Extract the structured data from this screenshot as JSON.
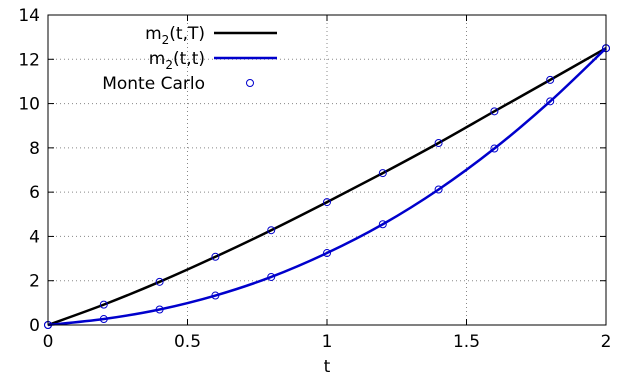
{
  "chart_data": {
    "type": "line",
    "title": "",
    "xlabel": "t",
    "ylabel": "",
    "xlim": [
      0,
      2
    ],
    "ylim": [
      0,
      14
    ],
    "xticks": [
      0,
      0.5,
      1,
      1.5,
      2
    ],
    "xtick_labels": [
      "0",
      "0.5",
      "1",
      "1.5",
      "2"
    ],
    "yticks": [
      0,
      2,
      4,
      6,
      8,
      10,
      12,
      14
    ],
    "ytick_labels": [
      "0",
      "2",
      "4",
      "6",
      "8",
      "10",
      "12",
      "14"
    ],
    "grid": "dotted",
    "legend_position": "top-left",
    "series": [
      {
        "name_main": "m",
        "name_sub": "2",
        "name_rest": "(t,T)",
        "kind": "line",
        "color": "#000000",
        "x": [
          0,
          0.2,
          0.4,
          0.6,
          0.8,
          1.0,
          1.2,
          1.4,
          1.6,
          1.8,
          2.0
        ],
        "values": [
          0,
          0.92,
          1.95,
          3.08,
          4.28,
          5.55,
          6.86,
          8.22,
          9.65,
          11.07,
          12.5
        ]
      },
      {
        "name_main": "m",
        "name_sub": "2",
        "name_rest": "(t,t)",
        "kind": "line",
        "color": "#0000cc",
        "x": [
          0,
          0.2,
          0.4,
          0.6,
          0.8,
          1.0,
          1.2,
          1.4,
          1.6,
          1.8,
          2.0
        ],
        "values": [
          0,
          0.27,
          0.7,
          1.33,
          2.17,
          3.25,
          4.55,
          6.12,
          7.97,
          10.1,
          12.5
        ]
      },
      {
        "name": "Monte Carlo",
        "kind": "markers",
        "color": "#0000cc",
        "x": [
          0,
          0.2,
          0.4,
          0.6,
          0.8,
          1.0,
          1.2,
          1.4,
          1.6,
          1.8,
          2.0
        ],
        "values": [
          0,
          0.92,
          1.95,
          3.08,
          4.28,
          5.55,
          6.86,
          8.22,
          9.65,
          11.07,
          12.5
        ],
        "values2": [
          0,
          0.27,
          0.7,
          1.33,
          2.17,
          3.25,
          4.55,
          6.12,
          7.97,
          10.1,
          12.5
        ]
      }
    ]
  }
}
